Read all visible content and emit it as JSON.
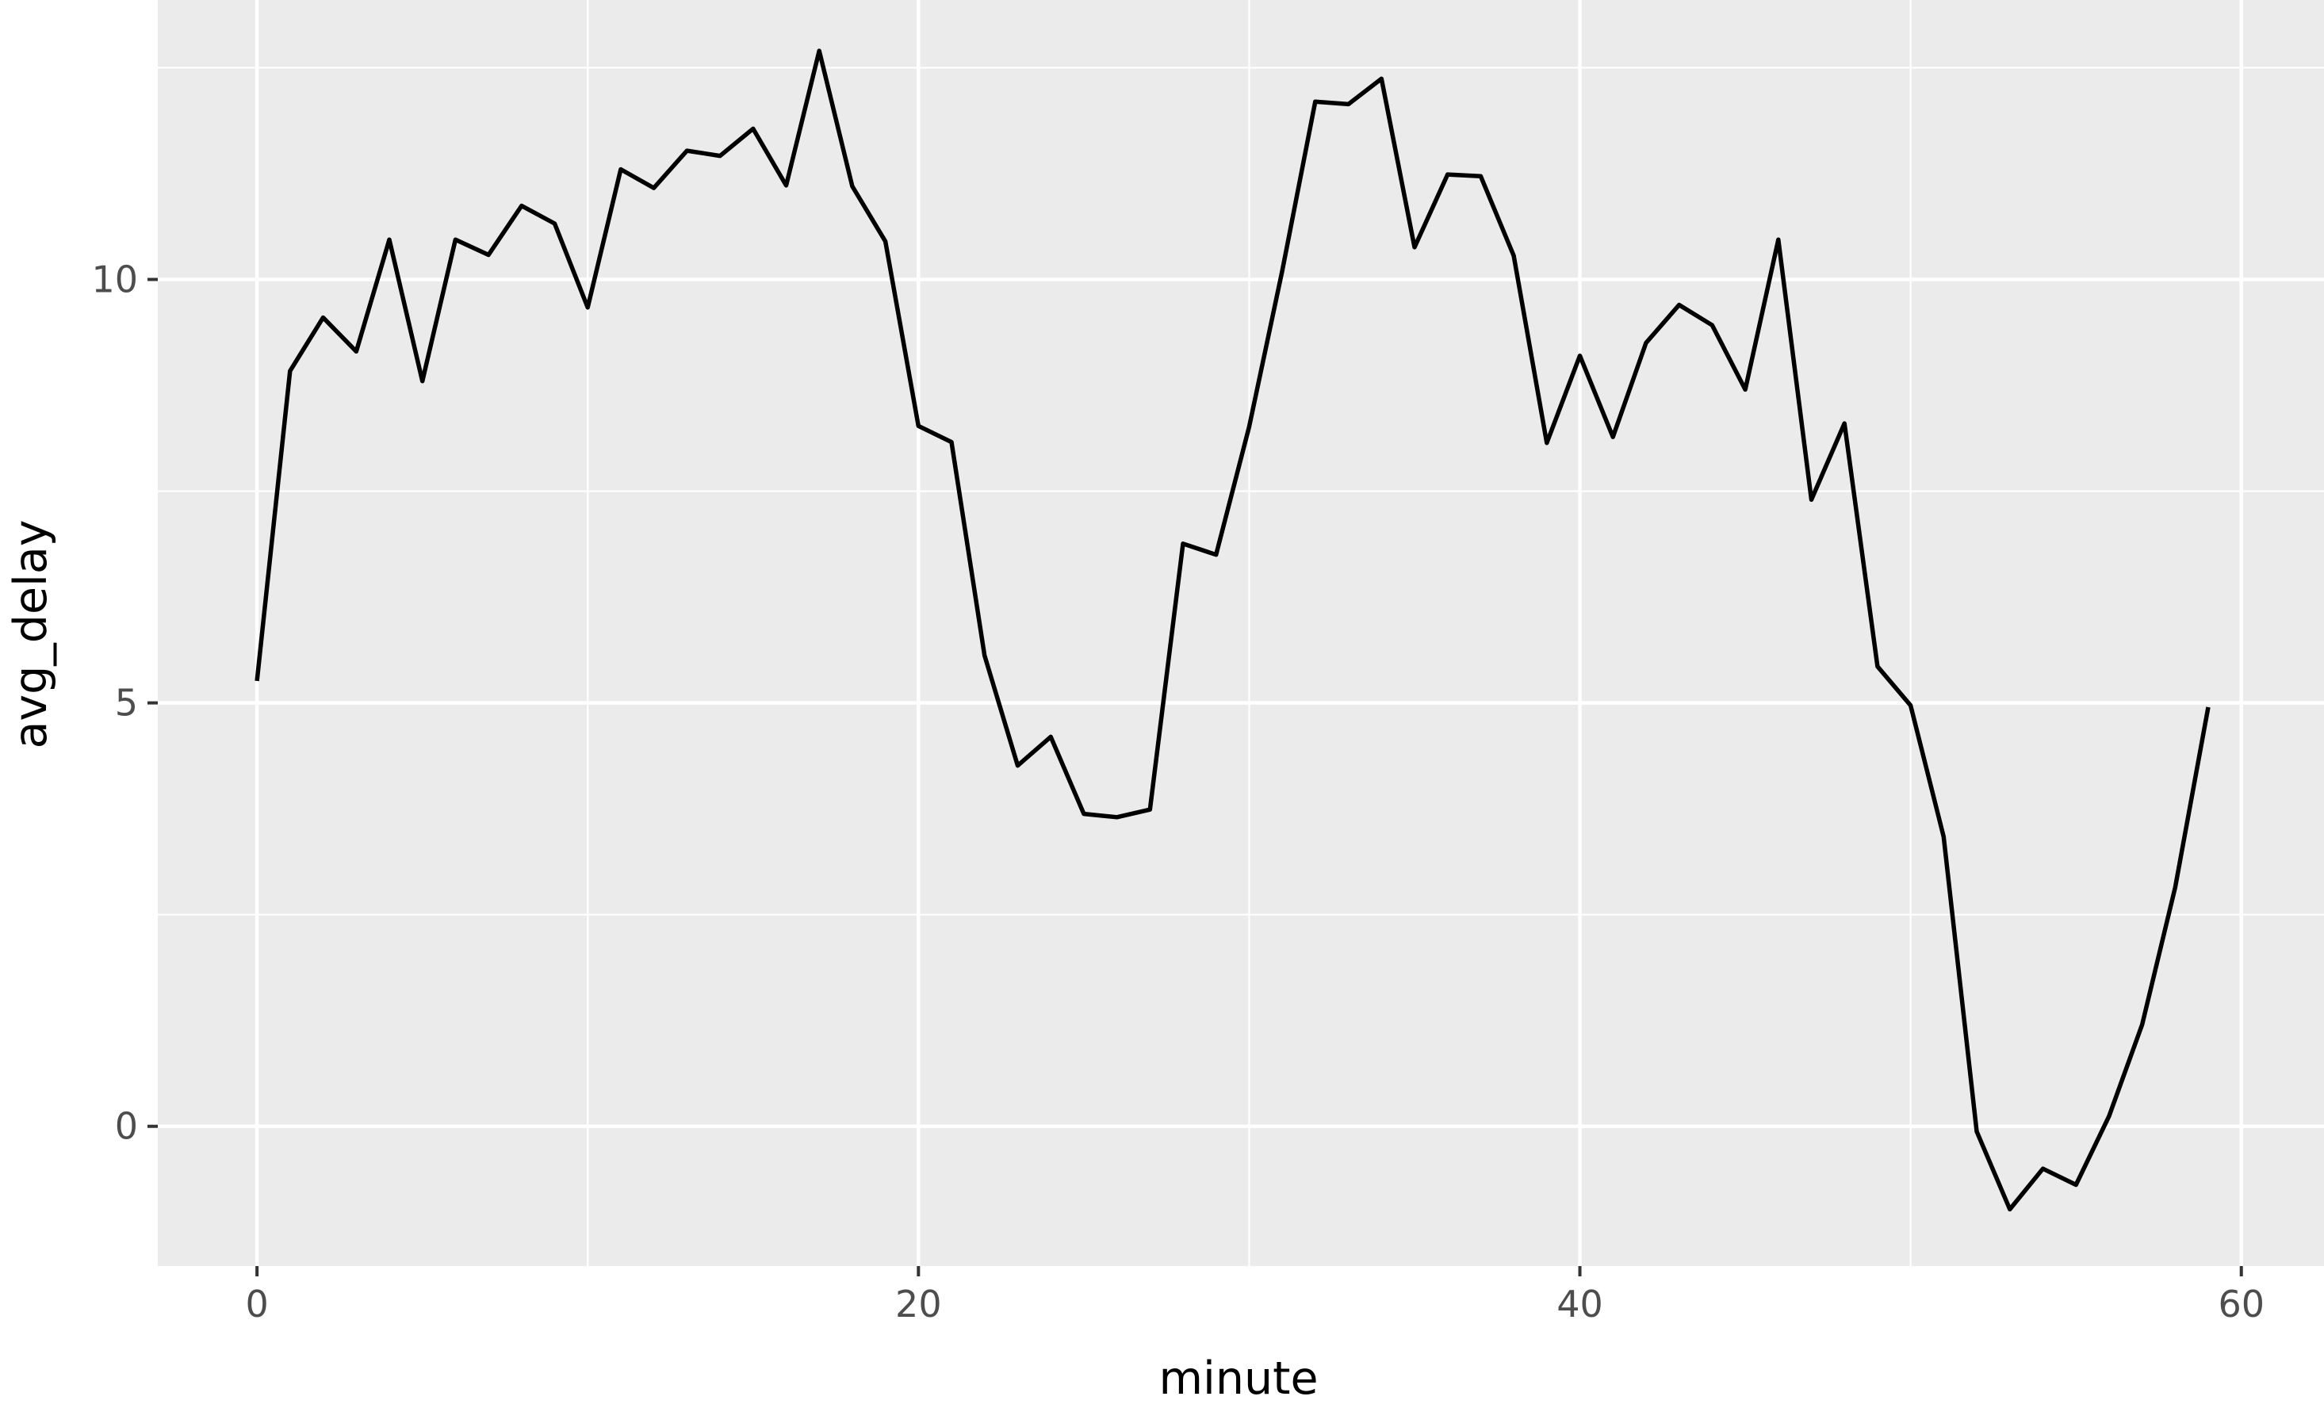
{
  "chart_data": {
    "type": "line",
    "title": "",
    "xlabel": "minute",
    "ylabel": "avg_delay",
    "xlim": [
      -3,
      62.5
    ],
    "ylim": [
      -1.65,
      13.3
    ],
    "grid": true,
    "legend": "none",
    "x_ticks": [
      0,
      20,
      40,
      60
    ],
    "y_ticks": [
      0,
      5,
      10
    ],
    "x_tick_labels": [
      "0",
      "20",
      "40",
      "60"
    ],
    "y_tick_labels": [
      "0",
      "5",
      "10"
    ],
    "series": [
      {
        "x": [
          0,
          1,
          2,
          3,
          4,
          5,
          6,
          7,
          8,
          9,
          10,
          11,
          12,
          13,
          14,
          15,
          16,
          17,
          18,
          19,
          20,
          21,
          22,
          23,
          24,
          25,
          26,
          27,
          28,
          29,
          30,
          31,
          32,
          33,
          34,
          35,
          36,
          37,
          38,
          39,
          40,
          41,
          42,
          43,
          44,
          45,
          46,
          47,
          48,
          49,
          50,
          51,
          52,
          53,
          54,
          55,
          56,
          57,
          58,
          59
        ],
        "values": [
          5.26,
          8.92,
          9.55,
          9.15,
          10.47,
          8.8,
          10.47,
          10.29,
          10.87,
          10.66,
          9.67,
          11.3,
          11.08,
          11.52,
          11.46,
          11.78,
          11.11,
          12.7,
          11.1,
          10.45,
          8.27,
          8.08,
          5.56,
          4.26,
          4.6,
          3.69,
          3.65,
          3.74,
          6.88,
          6.75,
          8.26,
          10.1,
          12.1,
          12.07,
          12.37,
          10.38,
          11.24,
          11.22,
          10.28,
          8.07,
          9.1,
          8.14,
          9.25,
          9.7,
          9.46,
          8.7,
          10.47,
          7.4,
          8.3,
          5.43,
          4.97,
          3.42,
          -0.06,
          -0.98,
          -0.5,
          -0.69,
          0.12,
          1.2,
          2.82,
          4.95
        ],
        "color": "#000000"
      }
    ],
    "colors": {
      "panel": "#ebebeb",
      "grid": "#ffffff",
      "line": "#000000",
      "tick": "#333333"
    }
  }
}
